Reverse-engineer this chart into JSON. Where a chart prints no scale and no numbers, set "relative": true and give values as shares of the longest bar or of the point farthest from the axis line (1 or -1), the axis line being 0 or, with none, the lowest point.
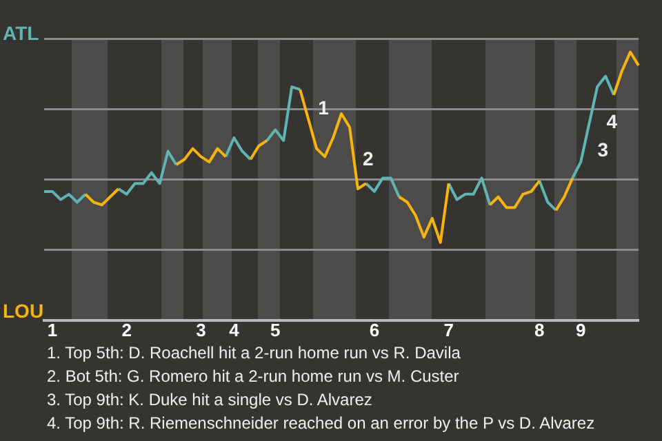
{
  "chart_data": {
    "type": "line",
    "relative": true,
    "categories": [
      null,
      "1",
      null,
      null,
      null,
      null,
      null,
      null,
      null,
      null,
      "2",
      null,
      null,
      null,
      null,
      null,
      null,
      null,
      null,
      "3",
      null,
      null,
      null,
      "4",
      null,
      null,
      null,
      null,
      "5",
      null,
      null,
      null,
      null,
      null,
      null,
      null,
      null,
      null,
      null,
      null,
      "6",
      null,
      null,
      null,
      null,
      null,
      null,
      null,
      null,
      "7",
      null,
      null,
      null,
      null,
      null,
      null,
      null,
      null,
      null,
      null,
      "8",
      null,
      null,
      null,
      null,
      "9",
      null,
      null,
      null,
      null,
      null,
      null,
      null
    ],
    "series": [
      {
        "color": "#5fb4b4",
        "values": [
          0.48,
          0.48,
          0.45,
          0.47,
          0.44,
          0.47,
          null,
          null,
          null,
          0.49,
          0.47,
          0.51,
          0.51,
          0.55,
          0.51,
          0.63,
          0.58,
          null,
          null,
          null,
          null,
          null,
          0.61,
          0.68,
          0.63,
          0.6,
          null,
          0.67,
          0.71,
          0.67,
          0.87,
          0.86,
          null,
          null,
          null,
          null,
          null,
          null,
          null,
          0.51,
          0.48,
          0.53,
          0.53,
          0.46,
          null,
          null,
          null,
          null,
          null,
          0.51,
          0.45,
          0.47,
          0.47,
          0.53,
          0.43,
          null,
          null,
          null,
          null,
          null,
          0.52,
          0.44,
          0.41,
          null,
          0.53,
          0.59,
          0.73,
          0.87,
          0.91,
          0.84,
          null,
          null,
          null
        ]
      },
      {
        "color": "#f6b40e",
        "values": [
          null,
          null,
          null,
          null,
          null,
          0.47,
          0.44,
          0.43,
          0.46,
          0.49,
          null,
          null,
          null,
          null,
          null,
          null,
          0.58,
          0.6,
          0.64,
          0.61,
          0.59,
          0.64,
          0.61,
          null,
          null,
          0.6,
          0.65,
          0.67,
          null,
          null,
          null,
          0.86,
          0.75,
          0.64,
          0.61,
          0.68,
          0.77,
          0.72,
          0.49,
          0.51,
          null,
          null,
          null,
          0.46,
          0.44,
          0.39,
          0.31,
          0.38,
          0.29,
          0.51,
          null,
          null,
          null,
          null,
          0.43,
          0.46,
          0.42,
          0.42,
          0.47,
          0.48,
          0.52,
          null,
          0.41,
          0.46,
          0.53,
          null,
          null,
          null,
          null,
          0.84,
          0.93,
          1,
          0.95
        ]
      }
    ],
    "grid": "y",
    "legend": false,
    "marker": "none",
    "annotations": [
      "ATL",
      "LOU",
      "1",
      "2",
      "3",
      "4",
      "1. Top 5th: D. Roachell hit a 2-run home run vs R. Davila",
      "2. Bot 5th: G. Romero hit a 2-run home run vs M. Custer",
      "3. Top 9th: K. Duke hit a single vs D. Alvarez",
      "4. Top 9th: R. Riemenschneider reached on an error by the P vs D. Alvarez"
    ]
  }
}
